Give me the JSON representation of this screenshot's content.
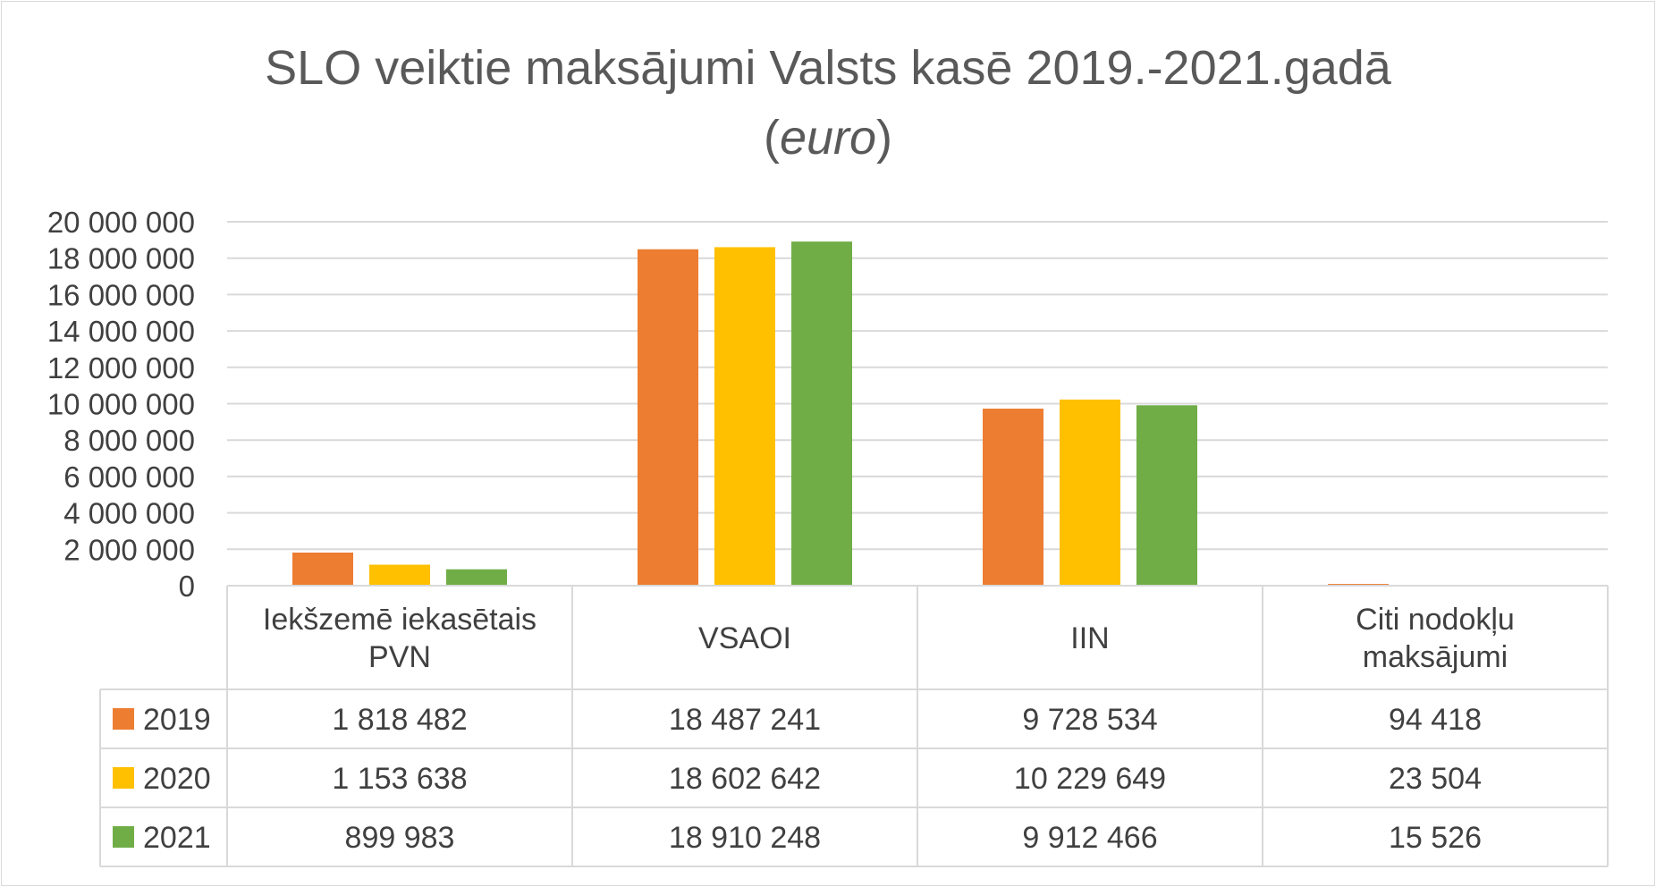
{
  "chart_data": {
    "type": "bar",
    "title": "SLO veiktie maksājumi Valsts kasē 2019.-2021.gadā",
    "subtitle": {
      "open": "(",
      "italic": "euro",
      "close": ")"
    },
    "categories": [
      [
        "Iekšzemē iekasētais",
        "PVN"
      ],
      [
        "VSAOI"
      ],
      [
        "IIN"
      ],
      [
        "Citi nodokļu",
        "maksājumi"
      ]
    ],
    "series": [
      {
        "name": "2019",
        "color": "#ed7d31",
        "values": [
          1818482,
          18487241,
          9728534,
          94418
        ],
        "labels": [
          "1 818 482",
          "18 487 241",
          "9 728 534",
          "94 418"
        ]
      },
      {
        "name": "2020",
        "color": "#ffc000",
        "values": [
          1153638,
          18602642,
          10229649,
          23504
        ],
        "labels": [
          "1 153 638",
          "18 602 642",
          "10 229 649",
          "23 504"
        ]
      },
      {
        "name": "2021",
        "color": "#70ad47",
        "values": [
          899983,
          18910248,
          9912466,
          15526
        ],
        "labels": [
          "899 983",
          "18 910 248",
          "9 912 466",
          "15 526"
        ]
      }
    ],
    "ylim": [
      0,
      20000000
    ],
    "yticks": [
      {
        "value": 0,
        "label": "0"
      },
      {
        "value": 2000000,
        "label": "2 000 000"
      },
      {
        "value": 4000000,
        "label": "4 000 000"
      },
      {
        "value": 6000000,
        "label": "6 000 000"
      },
      {
        "value": 8000000,
        "label": "8 000 000"
      },
      {
        "value": 10000000,
        "label": "10 000 000"
      },
      {
        "value": 12000000,
        "label": "12 000 000"
      },
      {
        "value": 14000000,
        "label": "14 000 000"
      },
      {
        "value": 16000000,
        "label": "16 000 000"
      },
      {
        "value": 18000000,
        "label": "18 000 000"
      },
      {
        "value": 20000000,
        "label": "20 000 000"
      }
    ],
    "grid": true,
    "legend": "data-table",
    "gridline_color": "#d9d9d9"
  }
}
